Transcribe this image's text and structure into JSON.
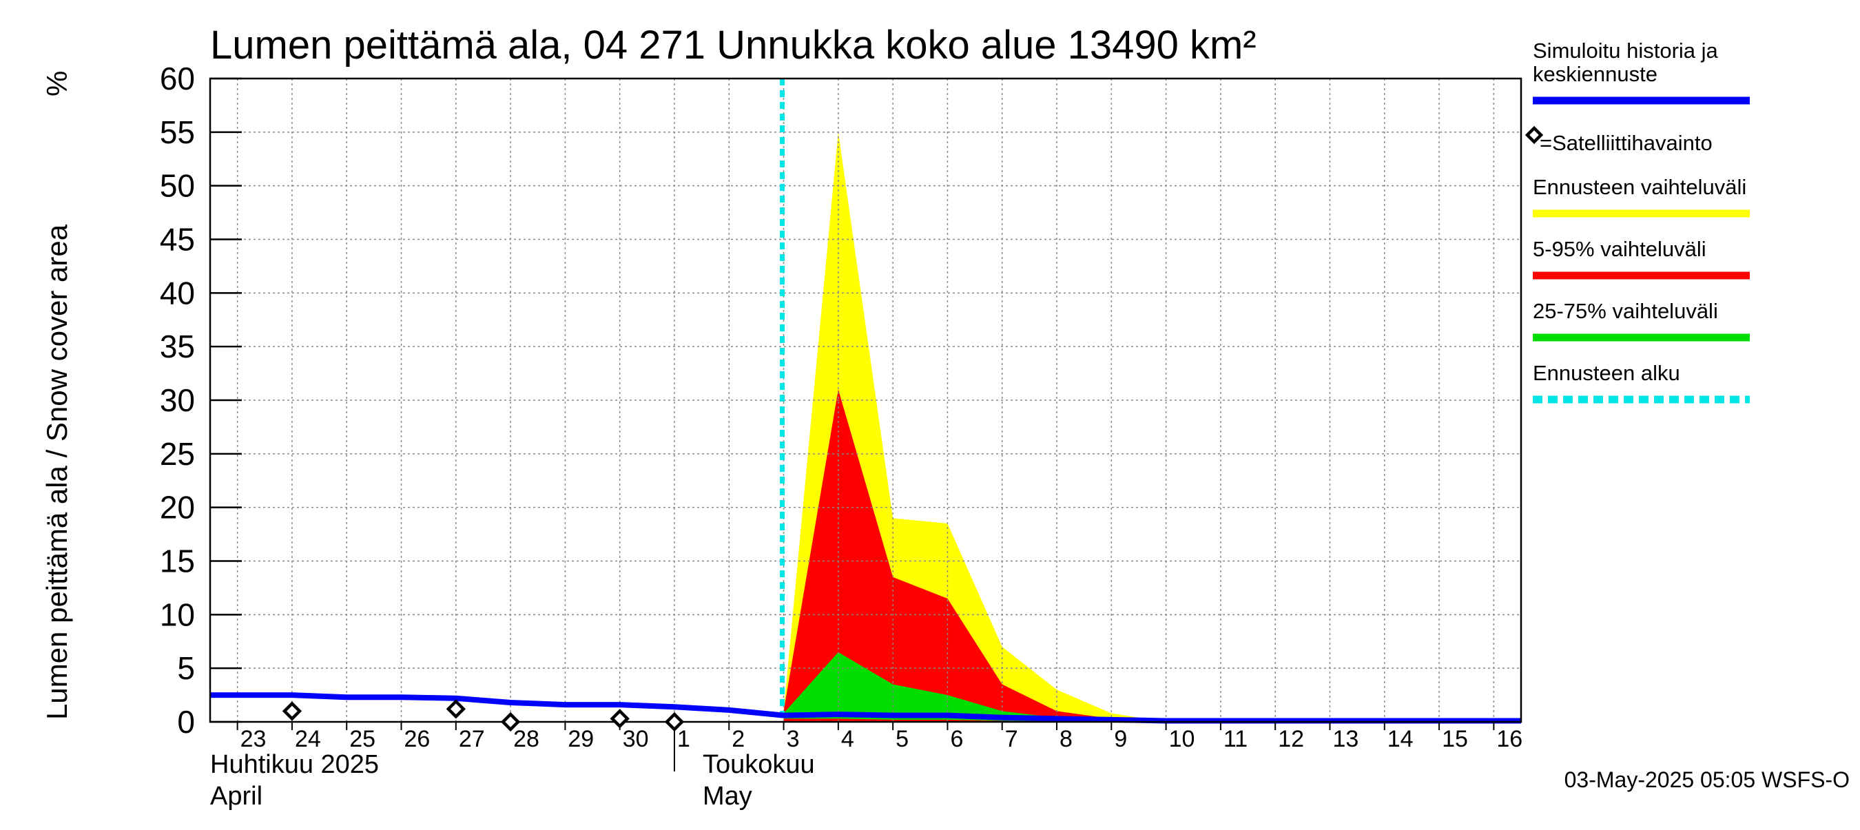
{
  "chart_data": {
    "type": "area",
    "title": "Lumen peittämä ala, 04 271 Unnukka koko alue 13490 km²",
    "ylabel": "Lumen peittämä ala / Snow cover area",
    "yunit": "%",
    "ylim": [
      0,
      60
    ],
    "yticks": [
      0,
      5,
      10,
      15,
      20,
      25,
      30,
      35,
      40,
      45,
      50,
      55,
      60
    ],
    "xlim": [
      22.5,
      46.5
    ],
    "x_note": "x in day-of-period units: April 23 = 23 ... April 30 = 30, May 1 = 31 ... May 16 = 46",
    "xticks": [
      {
        "x": 23,
        "label": "23"
      },
      {
        "x": 24,
        "label": "24"
      },
      {
        "x": 25,
        "label": "25"
      },
      {
        "x": 26,
        "label": "26"
      },
      {
        "x": 27,
        "label": "27"
      },
      {
        "x": 28,
        "label": "28"
      },
      {
        "x": 29,
        "label": "29"
      },
      {
        "x": 30,
        "label": "30"
      },
      {
        "x": 31,
        "label": "1"
      },
      {
        "x": 32,
        "label": "2"
      },
      {
        "x": 33,
        "label": "3"
      },
      {
        "x": 34,
        "label": "4"
      },
      {
        "x": 35,
        "label": "5"
      },
      {
        "x": 36,
        "label": "6"
      },
      {
        "x": 37,
        "label": "7"
      },
      {
        "x": 38,
        "label": "8"
      },
      {
        "x": 39,
        "label": "9"
      },
      {
        "x": 40,
        "label": "10"
      },
      {
        "x": 41,
        "label": "11"
      },
      {
        "x": 42,
        "label": "12"
      },
      {
        "x": 43,
        "label": "13"
      },
      {
        "x": 44,
        "label": "14"
      },
      {
        "x": 45,
        "label": "15"
      },
      {
        "x": 46,
        "label": "16"
      }
    ],
    "month_labels": {
      "april_fi": "Huhtikuu  2025",
      "april_en": "April",
      "may_fi": "Toukokuu",
      "may_en": "May"
    },
    "month_boundary_x": 31,
    "forecast_start_x": 33,
    "series": [
      {
        "name": "Ennusteen vaihteluväli",
        "kind": "band",
        "color": "#ffff00",
        "x": [
          33,
          34,
          35,
          36,
          37,
          38,
          39,
          40,
          46
        ],
        "upper": [
          1.0,
          55.0,
          19.0,
          18.5,
          7.0,
          3.0,
          0.8,
          0.0,
          0.0
        ],
        "lower": [
          0.0,
          0.0,
          0.0,
          0.0,
          0.0,
          0.0,
          0.0,
          0.0,
          0.0
        ]
      },
      {
        "name": "5-95% vaihteluväli",
        "kind": "band",
        "color": "#ff0000",
        "x": [
          33,
          34,
          35,
          36,
          37,
          38,
          39,
          40,
          46
        ],
        "upper": [
          1.0,
          31.0,
          13.5,
          11.5,
          3.5,
          1.0,
          0.3,
          0.0,
          0.0
        ],
        "lower": [
          0.0,
          0.0,
          0.0,
          0.0,
          0.0,
          0.0,
          0.0,
          0.0,
          0.0
        ]
      },
      {
        "name": "25-75% vaihteluväli",
        "kind": "band",
        "color": "#00dd00",
        "x": [
          33,
          34,
          35,
          36,
          37,
          38,
          39,
          40,
          46
        ],
        "upper": [
          0.8,
          6.5,
          3.5,
          2.5,
          1.0,
          0.4,
          0.1,
          0.0,
          0.0
        ],
        "lower": [
          0.3,
          0.3,
          0.2,
          0.2,
          0.1,
          0.0,
          0.0,
          0.0,
          0.0
        ]
      },
      {
        "name": "Simuloitu historia ja keskiennuste",
        "kind": "line",
        "color": "#0000ff",
        "x": [
          22.5,
          24,
          25,
          26,
          27,
          28,
          29,
          30,
          31,
          32,
          33,
          34,
          35,
          36,
          37,
          38,
          39,
          40,
          46.5
        ],
        "values": [
          2.5,
          2.5,
          2.3,
          2.3,
          2.2,
          1.8,
          1.6,
          1.6,
          1.4,
          1.1,
          0.6,
          0.7,
          0.6,
          0.6,
          0.4,
          0.3,
          0.2,
          0.1,
          0.1
        ]
      }
    ],
    "observations": {
      "name": "Satelliittihavainto",
      "x": [
        24,
        27,
        28,
        30,
        31
      ],
      "values": [
        1.0,
        1.2,
        0.0,
        0.3,
        0.0
      ]
    },
    "legend": {
      "position": "right",
      "items": [
        {
          "label_lines": [
            "Simuloitu historia ja",
            "keskiennuste"
          ],
          "color": "#0000ff",
          "style": "line"
        },
        {
          "label_lines": [
            "=Satelliittihavainto"
          ],
          "color": "#000000",
          "style": "marker"
        },
        {
          "label_lines": [
            "Ennusteen vaihteluväli"
          ],
          "color": "#ffff00",
          "style": "line"
        },
        {
          "label_lines": [
            "5-95% vaihteluväli"
          ],
          "color": "#ff0000",
          "style": "line"
        },
        {
          "label_lines": [
            "25-75% vaihteluväli"
          ],
          "color": "#00dd00",
          "style": "line"
        },
        {
          "label_lines": [
            "Ennusteen alku"
          ],
          "color": "#00e5e5",
          "style": "dashed"
        }
      ]
    },
    "footer": "03-May-2025 05:05 WSFS-O",
    "colors": {
      "forecast_start": "#00e5e5",
      "grid": "#888888"
    }
  }
}
